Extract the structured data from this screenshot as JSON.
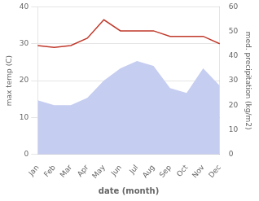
{
  "chart_data": {
    "type": "line",
    "xlabel": "date (month)",
    "ylabel": "max temp (C)",
    "y2label": "med. precipitation (kg/m2)",
    "categories": [
      "Jan",
      "Feb",
      "Mar",
      "Apr",
      "May",
      "Jun",
      "Jul",
      "Aug",
      "Sep",
      "Oct",
      "Nov",
      "Dec"
    ],
    "series": [
      {
        "type": "area",
        "color": "#c5cdf0",
        "axis": "y2",
        "values": [
          22,
          20,
          20,
          23,
          30,
          35,
          38,
          36,
          27,
          25,
          35,
          28
        ]
      },
      {
        "type": "line",
        "color": "#c0392b",
        "values": [
          29.5,
          29.0,
          29.5,
          31.5,
          36.5,
          33.5,
          33.5,
          33.5,
          32.0,
          32.0,
          32.0,
          30.0
        ]
      }
    ],
    "ylim": [
      0,
      40
    ],
    "yticks": [
      0,
      10,
      20,
      30,
      40
    ],
    "y2lim": [
      0,
      60
    ],
    "y2ticks": [
      0,
      10,
      20,
      30,
      40,
      50,
      60
    ],
    "grid": true
  }
}
